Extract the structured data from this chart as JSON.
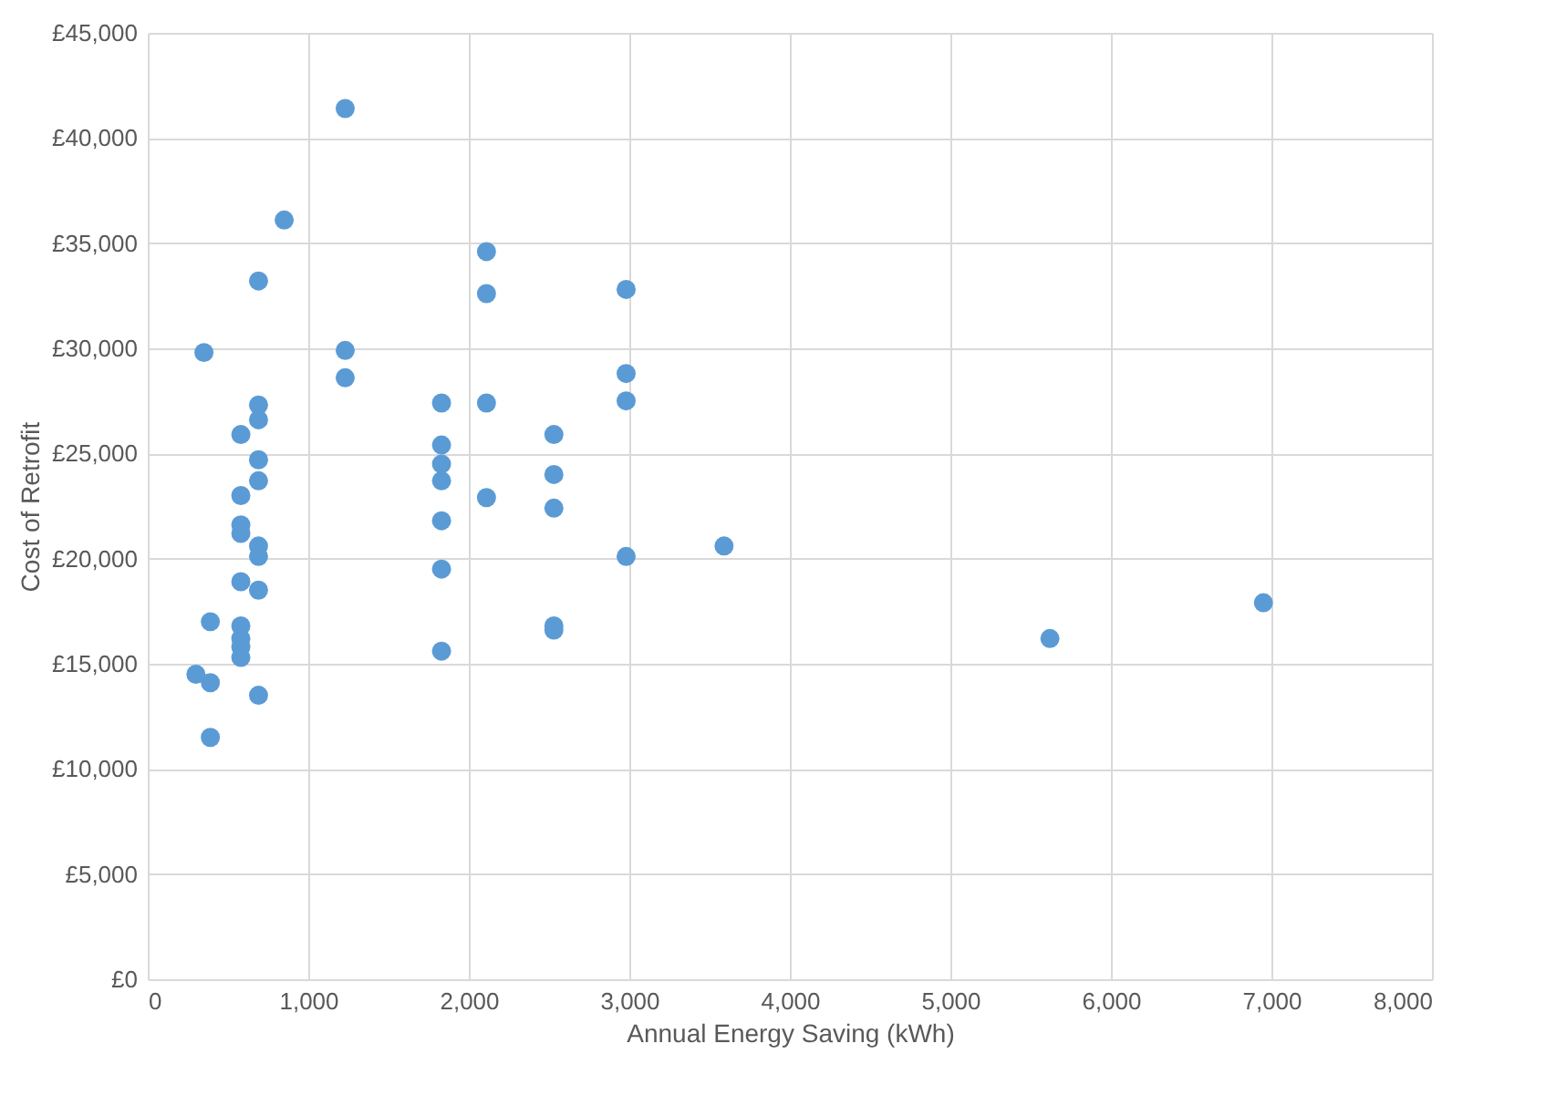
{
  "chart_data": {
    "type": "scatter",
    "xlabel": "Annual Energy Saving (kWh)",
    "ylabel": "Cost of Retrofit",
    "marker": "circle",
    "grid": true,
    "x": [
      1230,
      850,
      690,
      350,
      1230,
      1230,
      690,
      690,
      580,
      690,
      690,
      580,
      580,
      580,
      690,
      690,
      580,
      690,
      390,
      580,
      580,
      580,
      580,
      300,
      390,
      690,
      390,
      1830,
      1830,
      1830,
      1830,
      1830,
      1830,
      1830,
      2110,
      2110,
      2110,
      2110,
      2530,
      2530,
      2530,
      2530,
      2530,
      2980,
      2980,
      2980,
      2980,
      3590,
      5620,
      6950
    ],
    "series": [
      {
        "color": "#5b9bd5",
        "values": [
          41400,
          36100,
          33200,
          29800,
          29900,
          28600,
          27300,
          26600,
          25900,
          24700,
          23700,
          23000,
          21600,
          21200,
          20600,
          20100,
          18900,
          18500,
          17000,
          16800,
          16200,
          15800,
          15300,
          14500,
          14100,
          13500,
          11500,
          27400,
          25400,
          24500,
          23700,
          21800,
          19500,
          15600,
          34600,
          32600,
          27400,
          22900,
          25900,
          24000,
          22400,
          16800,
          16600,
          32800,
          28800,
          27500,
          20100,
          20600,
          16200,
          17900
        ]
      }
    ],
    "xlim": [
      0,
      8000
    ],
    "xticks": [
      0,
      {
        "value": 1000,
        "label": "1,000"
      },
      {
        "value": 2000,
        "label": "2,000"
      },
      {
        "value": 3000,
        "label": "3,000"
      },
      {
        "value": 4000,
        "label": "4,000"
      },
      {
        "value": 5000,
        "label": "5,000"
      },
      {
        "value": 6000,
        "label": "6,000"
      },
      {
        "value": 7000,
        "label": "7,000"
      },
      {
        "value": 8000,
        "label": "8,000"
      }
    ],
    "ylim": [
      0,
      45000
    ],
    "yticks": [
      {
        "value": 0,
        "label": "£0"
      },
      {
        "value": 5000,
        "label": "£5,000"
      },
      {
        "value": 10000,
        "label": "£10,000"
      },
      {
        "value": 15000,
        "label": "£15,000"
      },
      {
        "value": 20000,
        "label": "£20,000"
      },
      {
        "value": 25000,
        "label": "£25,000"
      },
      {
        "value": 30000,
        "label": "£30,000"
      },
      {
        "value": 35000,
        "label": "£35,000"
      },
      {
        "value": 40000,
        "label": "£40,000"
      },
      {
        "value": 45000,
        "label": "£45,000"
      }
    ]
  }
}
